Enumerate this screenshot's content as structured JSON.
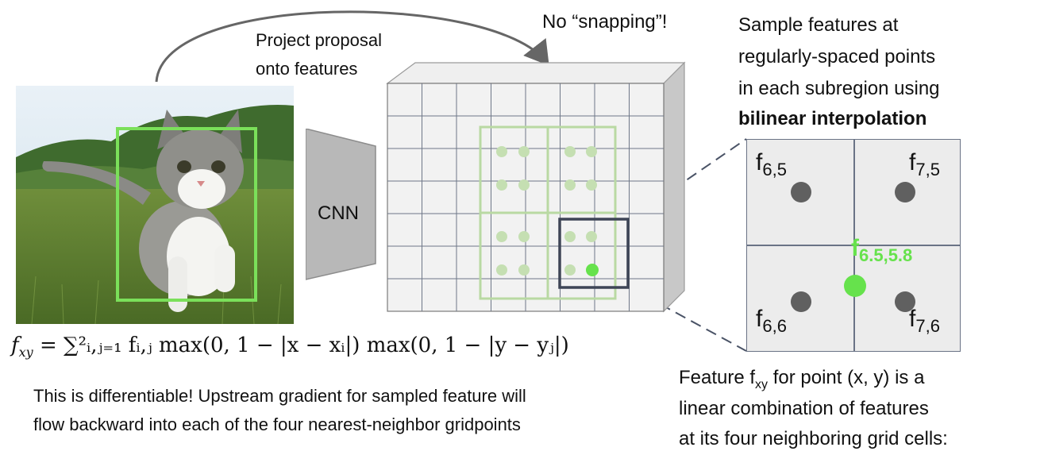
{
  "labels": {
    "project_line1": "Project proposal",
    "project_line2": "onto features",
    "no_snapping": "No “snapping”!",
    "cnn": "CNN",
    "sample_line1": "Sample features at",
    "sample_line2": "regularly-spaced points",
    "sample_line3": "in each subregion using",
    "sample_line4": "bilinear interpolation",
    "f65": "f",
    "f65_sub": "6,5",
    "f75": "f",
    "f75_sub": "7,5",
    "f66": "f",
    "f66_sub": "6,6",
    "f76": "f",
    "f76_sub": "7,6",
    "f_interp": "f",
    "f_interp_sub": "6.5,5.8",
    "formula_lhs": "f",
    "formula_lhs_sub": "xy",
    "formula_rhs": "= ∑²ᵢ,ⱼ₌₁ fᵢ,ⱼ max(0, 1 − |x − xᵢ|) max(0, 1 − |y − yⱼ|)",
    "diff_line1": "This is differentiable! Upstream gradient for sampled feature will",
    "diff_line2": "flow backward into each of the four nearest-neighbor gridpoints",
    "feature_line1_pre": "Feature f",
    "feature_line1_sub": "xy",
    "feature_line1_post": " for point (x, y) is a",
    "feature_line2": "linear combination of features",
    "feature_line3": "at its four neighboring grid cells:"
  },
  "colors": {
    "proposal_green": "#7be05a",
    "light_green": "#b9d9a3",
    "bright_green": "#66e24c",
    "dark_box": "#3e4556",
    "grid_bg": "#ececec",
    "point_dark": "#606060"
  }
}
